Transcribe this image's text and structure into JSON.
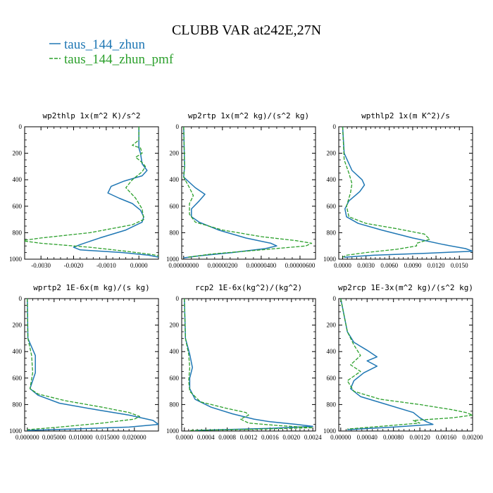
{
  "title": "CLUBB VAR at242E,27N",
  "legend": [
    {
      "name": "taus_144_zhun",
      "color": "#1f77b4",
      "dash": "solid"
    },
    {
      "name": "taus_144_zhun_pmf",
      "color": "#2ca02c",
      "dash": "dashed"
    }
  ],
  "chart_data": [
    {
      "type": "line",
      "title": "wp2thlp  1x(m^2 K)/s^2",
      "xlim": [
        -0.0035,
        0.0006
      ],
      "xticks": [
        -0.003,
        -0.002,
        -0.001,
        0.0
      ],
      "xtick_labels": [
        "-0.0030",
        "-0.0020",
        "-0.0010",
        "0.0000"
      ],
      "ylim": [
        1000,
        0
      ],
      "yticks": [
        0,
        200,
        400,
        600,
        800,
        1000
      ],
      "series": [
        {
          "name": "taus_144_zhun",
          "points": [
            [
              0.0,
              0
            ],
            [
              0.0,
              160
            ],
            [
              5e-05,
              200
            ],
            [
              0.0001,
              280
            ],
            [
              0.00025,
              330
            ],
            [
              0.0001,
              370
            ],
            [
              -0.00045,
              410
            ],
            [
              -0.00085,
              450
            ],
            [
              -0.00095,
              500
            ],
            [
              -0.0006,
              540
            ],
            [
              -0.0002,
              580
            ],
            [
              5e-05,
              630
            ],
            [
              0.00015,
              680
            ],
            [
              0.0001,
              720
            ],
            [
              -0.0004,
              780
            ],
            [
              -0.0012,
              840
            ],
            [
              -0.0018,
              890
            ],
            [
              -0.002,
              910
            ],
            [
              -0.0018,
              930
            ],
            [
              -0.0005,
              950
            ],
            [
              0.0003,
              970
            ],
            [
              0.0006,
              985
            ]
          ]
        },
        {
          "name": "taus_144_zhun_pmf",
          "points": [
            [
              0.0,
              0
            ],
            [
              0.0,
              100
            ],
            [
              -0.0002,
              140
            ],
            [
              5e-05,
              160
            ],
            [
              0.0001,
              200
            ],
            [
              -0.0001,
              230
            ],
            [
              0.0001,
              270
            ],
            [
              0.0002,
              300
            ],
            [
              0.0001,
              340
            ],
            [
              -0.0002,
              400
            ],
            [
              -0.0004,
              460
            ],
            [
              -0.0001,
              540
            ],
            [
              0.0001,
              620
            ],
            [
              0.00015,
              700
            ],
            [
              -0.0002,
              740
            ],
            [
              -0.0015,
              800
            ],
            [
              -0.003,
              840
            ],
            [
              -0.0036,
              860
            ],
            [
              -0.003,
              880
            ],
            [
              -0.0015,
              910
            ],
            [
              -0.0004,
              940
            ],
            [
              0.0004,
              965
            ],
            [
              0.0006,
              975
            ]
          ]
        }
      ]
    },
    {
      "type": "line",
      "title": "wp2rtp  1x(m^2 kg)/(s^2 kg)",
      "xlim": [
        -1e-07,
        6.8e-06
      ],
      "xticks": [
        0.0,
        2e-06,
        4e-06,
        6e-06
      ],
      "xtick_labels": [
        "0.00000000",
        "0.00000200",
        "0.00000400",
        "0.00000600"
      ],
      "ylim": [
        1000,
        0
      ],
      "yticks": [
        0,
        200,
        400,
        600,
        800,
        1000
      ],
      "series": [
        {
          "name": "taus_144_zhun",
          "points": [
            [
              0.0,
              0
            ],
            [
              5e-08,
              300
            ],
            [
              0.0,
              380
            ],
            [
              3e-07,
              420
            ],
            [
              6e-07,
              460
            ],
            [
              1.1e-06,
              510
            ],
            [
              8e-07,
              560
            ],
            [
              4e-07,
              620
            ],
            [
              4e-07,
              680
            ],
            [
              8e-07,
              720
            ],
            [
              1.8e-06,
              780
            ],
            [
              3.2e-06,
              840
            ],
            [
              4.5e-06,
              880
            ],
            [
              4.8e-06,
              900
            ],
            [
              4.2e-06,
              920
            ],
            [
              2.5e-06,
              950
            ],
            [
              8e-07,
              975
            ],
            [
              0.0,
              990
            ]
          ]
        },
        {
          "name": "taus_144_zhun_pmf",
          "points": [
            [
              0.0,
              0
            ],
            [
              5e-08,
              300
            ],
            [
              0.0,
              380
            ],
            [
              3e-07,
              460
            ],
            [
              5e-07,
              520
            ],
            [
              3e-07,
              580
            ],
            [
              3e-07,
              660
            ],
            [
              6e-07,
              720
            ],
            [
              2e-06,
              780
            ],
            [
              4e-06,
              830
            ],
            [
              5.8e-06,
              860
            ],
            [
              6.6e-06,
              880
            ],
            [
              6.3e-06,
              900
            ],
            [
              4e-06,
              930
            ],
            [
              1.5e-06,
              960
            ],
            [
              2e-07,
              985
            ]
          ]
        }
      ]
    },
    {
      "type": "line",
      "title": "wpthlp2  1x(m K^2)/s",
      "xlim": [
        -0.0005,
        0.0167
      ],
      "xticks": [
        0.0,
        0.003,
        0.006,
        0.009,
        0.012,
        0.015
      ],
      "xtick_labels": [
        "0.0000",
        "0.0030",
        "0.0060",
        "0.0090",
        "0.0120",
        "0.0150"
      ],
      "ylim": [
        1000,
        0
      ],
      "yticks": [
        0,
        200,
        400,
        600,
        800,
        1000
      ],
      "series": [
        {
          "name": "taus_144_zhun",
          "points": [
            [
              0.0,
              0
            ],
            [
              0.0002,
              200
            ],
            [
              0.0012,
              330
            ],
            [
              0.0025,
              400
            ],
            [
              0.0028,
              440
            ],
            [
              0.0022,
              490
            ],
            [
              0.0008,
              560
            ],
            [
              0.0003,
              620
            ],
            [
              0.0005,
              680
            ],
            [
              0.002,
              730
            ],
            [
              0.005,
              780
            ],
            [
              0.009,
              840
            ],
            [
              0.013,
              890
            ],
            [
              0.0158,
              920
            ],
            [
              0.0167,
              940
            ],
            [
              0.011,
              955
            ],
            [
              0.004,
              970
            ],
            [
              0.0002,
              985
            ]
          ]
        },
        {
          "name": "taus_144_zhun_pmf",
          "points": [
            [
              0.0,
              0
            ],
            [
              0.0002,
              250
            ],
            [
              0.0008,
              350
            ],
            [
              0.0012,
              430
            ],
            [
              0.001,
              500
            ],
            [
              0.0005,
              600
            ],
            [
              0.0008,
              680
            ],
            [
              0.003,
              730
            ],
            [
              0.007,
              770
            ],
            [
              0.0105,
              810
            ],
            [
              0.0112,
              850
            ],
            [
              0.0095,
              880
            ],
            [
              0.0095,
              900
            ],
            [
              0.007,
              925
            ],
            [
              0.003,
              950
            ],
            [
              0.0005,
              970
            ],
            [
              0.0,
              985
            ]
          ]
        }
      ]
    },
    {
      "type": "line",
      "title": "wprtp2  1E-6x(m kg)/(s kg)",
      "xlim": [
        -0.0005,
        0.0245
      ],
      "xticks": [
        0.0,
        0.005,
        0.01,
        0.015,
        0.02
      ],
      "xtick_labels": [
        "0.000000",
        "0.005000",
        "0.010000",
        "0.015000",
        "0.020000"
      ],
      "ylim": [
        1000,
        0
      ],
      "yticks": [
        0,
        200,
        400,
        600,
        800,
        1000
      ],
      "series": [
        {
          "name": "taus_144_zhun",
          "points": [
            [
              0.0,
              0
            ],
            [
              0.0001,
              300
            ],
            [
              0.0015,
              430
            ],
            [
              0.0015,
              560
            ],
            [
              0.0005,
              680
            ],
            [
              0.002,
              730
            ],
            [
              0.006,
              790
            ],
            [
              0.013,
              840
            ],
            [
              0.019,
              880
            ],
            [
              0.0235,
              920
            ],
            [
              0.0245,
              950
            ],
            [
              0.019,
              970
            ],
            [
              0.008,
              985
            ],
            [
              0.0,
              995
            ]
          ]
        },
        {
          "name": "taus_144_zhun_pmf",
          "points": [
            [
              0.0,
              0
            ],
            [
              0.0001,
              300
            ],
            [
              0.0008,
              430
            ],
            [
              0.001,
              560
            ],
            [
              0.0005,
              680
            ],
            [
              0.002,
              720
            ],
            [
              0.007,
              770
            ],
            [
              0.014,
              820
            ],
            [
              0.019,
              860
            ],
            [
              0.021,
              890
            ],
            [
              0.02,
              910
            ],
            [
              0.014,
              940
            ],
            [
              0.006,
              970
            ],
            [
              0.0,
              990
            ]
          ]
        }
      ]
    },
    {
      "type": "line",
      "title": "rcp2  1E-6x(kg^2)/(kg^2)",
      "xlim": [
        -5e-05,
        0.00245
      ],
      "xticks": [
        0.0,
        0.0004,
        0.0008,
        0.0012,
        0.0016,
        0.002,
        0.0024
      ],
      "xtick_labels": [
        "0.0000",
        "0.0004",
        "0.0008",
        "0.0012",
        "0.0016",
        "0.0020",
        "0.0024"
      ],
      "ylim": [
        1000,
        0
      ],
      "yticks": [
        0,
        200,
        400,
        600,
        800,
        1000
      ],
      "series": [
        {
          "name": "taus_144_zhun",
          "points": [
            [
              0.0,
              0
            ],
            [
              2e-05,
              300
            ],
            [
              0.0001,
              420
            ],
            [
              0.00015,
              520
            ],
            [
              0.0001,
              600
            ],
            [
              0.0001,
              680
            ],
            [
              0.0002,
              760
            ],
            [
              0.0005,
              820
            ],
            [
              0.0009,
              870
            ],
            [
              0.0013,
              910
            ],
            [
              0.0016,
              930
            ],
            [
              0.0021,
              950
            ],
            [
              0.0024,
              965
            ],
            [
              0.0016,
              980
            ],
            [
              0.0002,
              995
            ]
          ]
        },
        {
          "name": "taus_144_zhun_pmf",
          "points": [
            [
              0.0,
              0
            ],
            [
              2e-05,
              300
            ],
            [
              8e-05,
              420
            ],
            [
              0.0001,
              520
            ],
            [
              8e-05,
              620
            ],
            [
              0.0001,
              700
            ],
            [
              0.0003,
              780
            ],
            [
              0.0008,
              830
            ],
            [
              0.00115,
              860
            ],
            [
              0.0012,
              880
            ],
            [
              0.00105,
              910
            ],
            [
              0.0012,
              940
            ],
            [
              0.0018,
              960
            ],
            [
              0.0024,
              975
            ],
            [
              0.0012,
              988
            ],
            [
              0.0001,
              995
            ]
          ]
        }
      ]
    },
    {
      "type": "line",
      "title": "wp2rcp  1E-3x(m^2 kg)/(s^2 kg)",
      "xlim": [
        -3e-05,
        0.002
      ],
      "xticks": [
        0.0,
        0.0004,
        0.0008,
        0.0012,
        0.0016,
        0.002
      ],
      "xtick_labels": [
        "0.00000",
        "0.00040",
        "0.00080",
        "0.00120",
        "0.00160",
        "0.00200"
      ],
      "ylim": [
        1000,
        0
      ],
      "yticks": [
        0,
        200,
        400,
        600,
        800,
        1000
      ],
      "series": [
        {
          "name": "taus_144_zhun",
          "points": [
            [
              0.0,
              0
            ],
            [
              0.0001,
              250
            ],
            [
              0.0002,
              330
            ],
            [
              0.0004,
              390
            ],
            [
              0.00055,
              440
            ],
            [
              0.0004,
              470
            ],
            [
              0.00055,
              510
            ],
            [
              0.00035,
              560
            ],
            [
              0.0002,
              620
            ],
            [
              0.00015,
              680
            ],
            [
              0.0003,
              740
            ],
            [
              0.0007,
              800
            ],
            [
              0.0011,
              860
            ],
            [
              0.0012,
              900
            ],
            [
              0.0013,
              930
            ],
            [
              0.0014,
              950
            ],
            [
              0.0008,
              970
            ],
            [
              0.0001,
              990
            ]
          ]
        },
        {
          "name": "taus_144_zhun_pmf",
          "points": [
            [
              0.0,
              0
            ],
            [
              0.0001,
              250
            ],
            [
              0.0002,
              350
            ],
            [
              0.0003,
              430
            ],
            [
              0.00015,
              500
            ],
            [
              0.0003,
              550
            ],
            [
              0.0001,
              620
            ],
            [
              0.0002,
              700
            ],
            [
              0.0006,
              760
            ],
            [
              0.0012,
              800
            ],
            [
              0.0017,
              840
            ],
            [
              0.0019,
              860
            ],
            [
              0.002,
              880
            ],
            [
              0.0017,
              900
            ],
            [
              0.0011,
              920
            ],
            [
              0.0012,
              940
            ],
            [
              0.0006,
              965
            ],
            [
              0.0001,
              985
            ]
          ]
        }
      ]
    }
  ]
}
